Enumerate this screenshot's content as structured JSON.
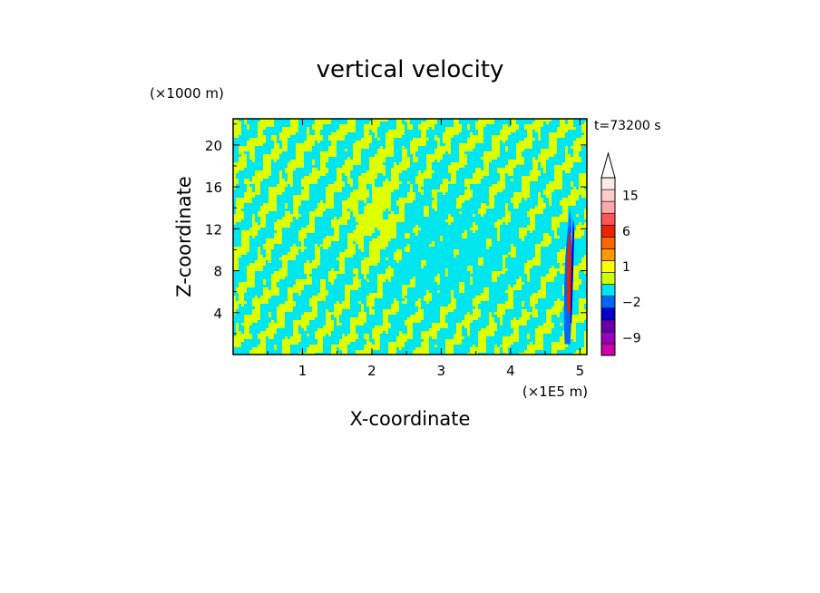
{
  "chart_data": {
    "type": "heatmap",
    "title": "vertical velocity",
    "xlabel": "X-coordinate",
    "ylabel": "Z-coordinate",
    "x_unit": "(×1E5 m)",
    "y_unit": "(×1000 m)",
    "time_label": "t=73200 s",
    "xlim": [
      0,
      5.1
    ],
    "ylim": [
      0,
      22.5
    ],
    "x_ticks": [
      1,
      2,
      3,
      4,
      5
    ],
    "y_ticks": [
      4,
      8,
      12,
      16,
      20
    ],
    "colorbar": {
      "levels": [
        -12,
        -9,
        -6,
        -4,
        -2,
        -1,
        0,
        1,
        2,
        4,
        6,
        9,
        12,
        15,
        18,
        24
      ],
      "colors": [
        "#cc00aa",
        "#9900bb",
        "#6600aa",
        "#0000cc",
        "#0066ff",
        "#00e5ee",
        "#ccff00",
        "#ffff00",
        "#ff9900",
        "#ff6600",
        "#ee2200",
        "#ff5555",
        "#ffaaaa",
        "#ffcccc",
        "#ffe8e8"
      ],
      "tick_labels": [
        {
          "value": -9,
          "label": "−9"
        },
        {
          "value": -2,
          "label": "−2"
        },
        {
          "value": 1,
          "label": "1"
        },
        {
          "value": 6,
          "label": "6"
        },
        {
          "value": 15,
          "label": "15"
        }
      ],
      "extend": "max"
    },
    "field_description_colors": {
      "positive": "#ddff00",
      "negative": "#00e5ee"
    }
  }
}
